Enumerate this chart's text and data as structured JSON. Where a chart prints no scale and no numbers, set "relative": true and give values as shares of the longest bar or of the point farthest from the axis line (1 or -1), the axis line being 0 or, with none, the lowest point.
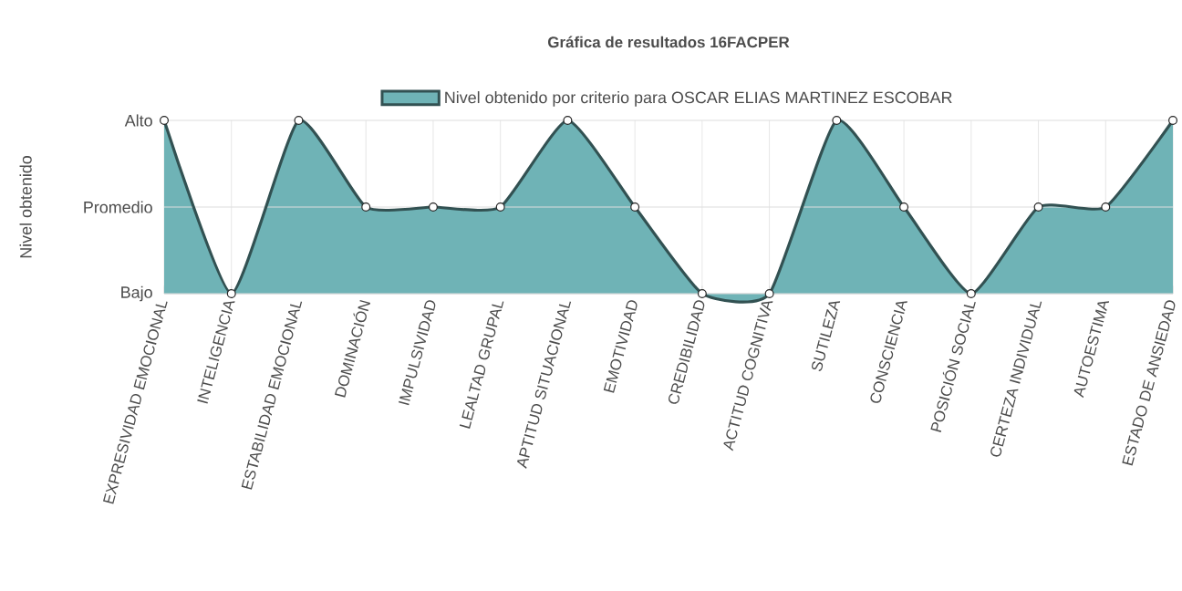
{
  "chart_data": {
    "type": "area",
    "title": "Gráfica de resultados 16FACPER",
    "ylabel": "Nivel obtenido",
    "categories": [
      "EXPRESIVIDAD EMOCIONAL",
      "INTELIGENCIA",
      "ESTABILIDAD EMOCIONAL",
      "DOMINACIÓN",
      "IMPULSIVIDAD",
      "LEALTAD GRUPAL",
      "APTITUD SITUACIONAL",
      "EMOTIVIDAD",
      "CREDIBILIDAD",
      "ACTITUD COGNITIVA",
      "SUTILEZA",
      "CONSCIENCIA",
      "POSICIÓN SOCIAL",
      "CERTEZA INDIVIDUAL",
      "AUTOESTIMA",
      "ESTADO DE ANSIEDAD"
    ],
    "series": [
      {
        "name": "Nivel obtenido por criterio para OSCAR ELIAS MARTINEZ ESCOBAR",
        "color": "#6fb3b6",
        "values": [
          1,
          0,
          1,
          0.5,
          0.5,
          0.5,
          1,
          0.5,
          0,
          0,
          1,
          0.5,
          0,
          0.5,
          0.5,
          1
        ]
      }
    ],
    "relative": true,
    "ref_lines": [
      {
        "axis": "y",
        "value": 0,
        "label": "Bajo",
        "color": "#dedede"
      },
      {
        "axis": "y",
        "value": 0.5,
        "label": "Promedio",
        "color": "#dedede"
      },
      {
        "axis": "y",
        "value": 1,
        "label": "Alto",
        "color": "#dedede"
      }
    ],
    "grid": "x",
    "legend": "top",
    "marker": "circle"
  }
}
